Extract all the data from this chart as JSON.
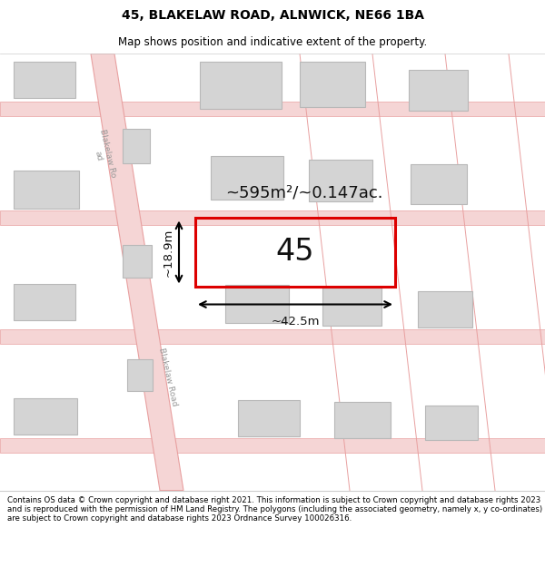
{
  "title_line1": "45, BLAKELAW ROAD, ALNWICK, NE66 1BA",
  "title_line2": "Map shows position and indicative extent of the property.",
  "footer_text": "Contains OS data © Crown copyright and database right 2021. This information is subject to Crown copyright and database rights 2023 and is reproduced with the permission of HM Land Registry. The polygons (including the associated geometry, namely x, y co-ordinates) are subject to Crown copyright and database rights 2023 Ordnance Survey 100026316.",
  "bg_color": "#ffffff",
  "road_color": "#e8a0a0",
  "road_fill": "#f5d5d5",
  "building_fill": "#d4d4d4",
  "building_edge": "#b8b8b8",
  "highlight_color": "#dd0000",
  "area_text": "~595m²/~0.147ac.",
  "property_label": "45",
  "dim_width": "~42.5m",
  "dim_height": "~18.9m",
  "road_label_1": "Blakelaw Ro\nad",
  "road_label_2": "Blakelaw Road",
  "title_fontsize": 10,
  "subtitle_fontsize": 8.5,
  "footer_fontsize": 6.2
}
